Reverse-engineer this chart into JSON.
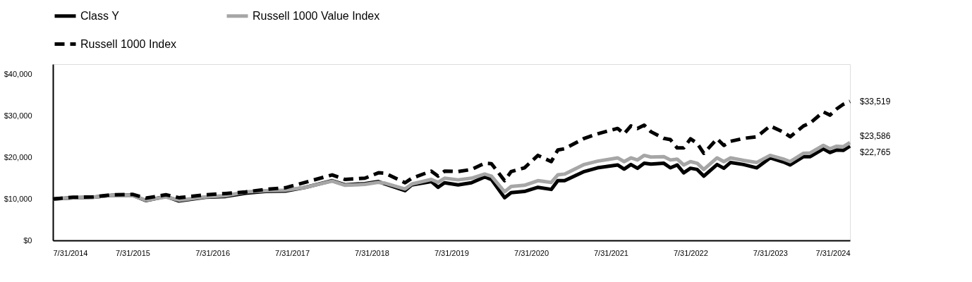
{
  "chart_data": {
    "type": "line",
    "x": [
      "2014-07-31",
      "2014-10-31",
      "2015-01-31",
      "2015-04-30",
      "2015-07-31",
      "2015-09-30",
      "2015-12-31",
      "2016-02-29",
      "2016-06-30",
      "2016-09-30",
      "2016-12-31",
      "2017-03-31",
      "2017-06-30",
      "2017-09-30",
      "2018-01-31",
      "2018-03-31",
      "2018-06-30",
      "2018-08-31",
      "2018-09-30",
      "2018-12-31",
      "2019-01-31",
      "2019-04-30",
      "2019-05-31",
      "2019-06-30",
      "2019-08-31",
      "2019-10-31",
      "2019-12-31",
      "2020-01-31",
      "2020-03-31",
      "2020-04-30",
      "2020-06-30",
      "2020-08-31",
      "2020-10-31",
      "2020-11-30",
      "2020-12-31",
      "2021-03-31",
      "2021-05-31",
      "2021-08-31",
      "2021-09-30",
      "2021-10-31",
      "2021-11-30",
      "2021-12-31",
      "2022-01-31",
      "2022-03-31",
      "2022-04-30",
      "2022-05-31",
      "2022-06-30",
      "2022-07-31",
      "2022-08-31",
      "2022-09-30",
      "2022-11-30",
      "2022-12-31",
      "2023-01-31",
      "2023-03-31",
      "2023-05-31",
      "2023-07-31",
      "2023-09-30",
      "2023-10-31",
      "2023-12-31",
      "2024-01-31",
      "2024-03-31",
      "2024-04-30",
      "2024-05-31",
      "2024-06-30",
      "2024-07-31"
    ],
    "series": [
      {
        "name": "Class Y",
        "color": "#000000",
        "line_style": "solid",
        "values": [
          10000,
          10300,
          10400,
          10900,
          10900,
          9600,
          10600,
          9500,
          10400,
          10600,
          11400,
          11800,
          11900,
          12800,
          14400,
          13400,
          13700,
          14200,
          13600,
          12000,
          13400,
          14200,
          12800,
          13900,
          13400,
          13900,
          15300,
          14700,
          10300,
          11500,
          11800,
          12800,
          12300,
          14400,
          14400,
          16600,
          17500,
          18200,
          17200,
          18300,
          17400,
          18600,
          18400,
          18600,
          17500,
          18200,
          16300,
          17400,
          17100,
          15500,
          18300,
          17400,
          18800,
          18300,
          17500,
          19900,
          18900,
          18200,
          20200,
          20200,
          22100,
          21200,
          21800,
          21700,
          22765
        ]
      },
      {
        "name": "Russell 1000 Value Index",
        "color": "#a6a6a6",
        "line_style": "solid",
        "values": [
          10000,
          10300,
          10400,
          10900,
          10800,
          9700,
          10500,
          9700,
          10500,
          10800,
          11700,
          12000,
          12100,
          12800,
          14300,
          13300,
          13500,
          14000,
          13800,
          12400,
          13600,
          14700,
          14000,
          15000,
          14600,
          15000,
          16000,
          15500,
          11700,
          13000,
          13300,
          14400,
          14000,
          15800,
          16000,
          18300,
          19100,
          19900,
          19000,
          19900,
          19400,
          20500,
          20100,
          20200,
          19400,
          19600,
          18200,
          19000,
          18600,
          17100,
          19900,
          19000,
          19900,
          19300,
          18800,
          20500,
          19600,
          19000,
          21000,
          21100,
          22900,
          22100,
          22700,
          22600,
          23586
        ]
      },
      {
        "name": "Russell 1000 Index",
        "color": "#000000",
        "line_style": "dashed",
        "values": [
          10000,
          10400,
          10500,
          11000,
          11100,
          10200,
          11000,
          10300,
          11000,
          11300,
          11700,
          12300,
          12700,
          14000,
          15800,
          14700,
          15000,
          16300,
          16200,
          13900,
          15000,
          16700,
          15500,
          16700,
          16600,
          17100,
          18600,
          18500,
          14400,
          16600,
          17500,
          20500,
          19000,
          21800,
          22100,
          24600,
          25700,
          27000,
          25700,
          27600,
          27000,
          27800,
          26200,
          24600,
          24300,
          22300,
          22300,
          24500,
          23400,
          21000,
          24500,
          22900,
          23900,
          24600,
          25000,
          27600,
          26100,
          25000,
          27600,
          28300,
          31000,
          30200,
          31700,
          32800,
          33519
        ]
      }
    ],
    "xlim": [
      "2014-07-31",
      "2024-07-31"
    ],
    "xticks": [
      {
        "value": "2014-07-31",
        "label": "7/31/2014"
      },
      {
        "value": "2015-07-31",
        "label": "7/31/2015"
      },
      {
        "value": "2016-07-31",
        "label": "7/31/2016"
      },
      {
        "value": "2017-07-31",
        "label": "7/31/2017"
      },
      {
        "value": "2018-07-31",
        "label": "7/31/2018"
      },
      {
        "value": "2019-07-31",
        "label": "7/31/2019"
      },
      {
        "value": "2020-07-31",
        "label": "7/31/2020"
      },
      {
        "value": "2021-07-31",
        "label": "7/31/2021"
      },
      {
        "value": "2022-07-31",
        "label": "7/31/2022"
      },
      {
        "value": "2023-07-31",
        "label": "7/31/2023"
      },
      {
        "value": "2024-07-31",
        "label": "7/31/2024"
      }
    ],
    "ylim": [
      0,
      42500
    ],
    "yticks": [
      {
        "value": 0,
        "label": "$0"
      },
      {
        "value": 10000,
        "label": "$10,000"
      },
      {
        "value": 20000,
        "label": "$20,000"
      },
      {
        "value": 30000,
        "label": "$30,000"
      },
      {
        "value": 40000,
        "label": "$40,000"
      }
    ],
    "annotations": [
      {
        "text": "$33,519",
        "x": "2024-07-31",
        "y": 33519
      },
      {
        "text": "$23,586",
        "x": "2024-07-31",
        "y": 23586
      },
      {
        "text": "$22,765",
        "x": "2024-07-31",
        "y": 22765
      }
    ],
    "grid": false,
    "legend": "top",
    "marker": "none"
  }
}
